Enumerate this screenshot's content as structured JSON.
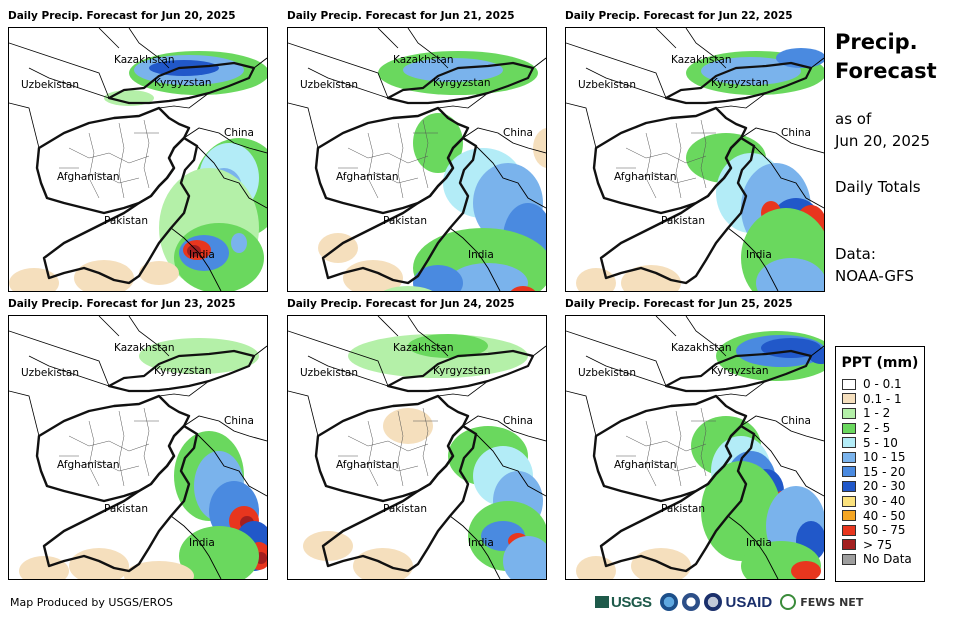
{
  "panels": [
    {
      "title": "Daily Precip. Forecast for Jun 20, 2025"
    },
    {
      "title": "Daily Precip. Forecast for Jun 21, 2025"
    },
    {
      "title": "Daily Precip. Forecast for Jun 22, 2025"
    },
    {
      "title": "Daily Precip. Forecast for Jun 23, 2025"
    },
    {
      "title": "Daily Precip. Forecast for Jun 24, 2025"
    },
    {
      "title": "Daily Precip. Forecast for Jun 25, 2025"
    }
  ],
  "country_labels": {
    "kazakhstan": "Kazakhstan",
    "uzbekistan": "Uzbekistan",
    "kyrgyzstan": "Kyrgyzstan",
    "china": "China",
    "afghanistan": "Afghanistan",
    "pakistan": "Pakistan",
    "india": "India"
  },
  "side": {
    "title_line1": "Precip.",
    "title_line2": "Forecast",
    "as_of_label": "as of",
    "date": "Jun 20, 2025",
    "totals": "Daily Totals",
    "data_label": "Data:",
    "data_source": "NOAA-GFS"
  },
  "legend": {
    "title": "PPT (mm)",
    "items": [
      {
        "label": "0 - 0.1",
        "color": "#ffffff"
      },
      {
        "label": "0.1 - 1",
        "color": "#f5dfbd"
      },
      {
        "label": "1 - 2",
        "color": "#b4f0a8"
      },
      {
        "label": "2 - 5",
        "color": "#6ad85e"
      },
      {
        "label": "5 - 10",
        "color": "#b3ecf7"
      },
      {
        "label": "10 - 15",
        "color": "#7ab3ec"
      },
      {
        "label": "15 - 20",
        "color": "#4a8ae0"
      },
      {
        "label": "20 - 30",
        "color": "#2158c9"
      },
      {
        "label": "30 - 40",
        "color": "#fbe27d"
      },
      {
        "label": "40 - 50",
        "color": "#f5a623"
      },
      {
        "label": "50 - 75",
        "color": "#e8361e"
      },
      {
        "label": "> 75",
        "color": "#a31f1f"
      },
      {
        "label": "No Data",
        "color": "#9e9e9e"
      }
    ]
  },
  "footer": {
    "credit": "Map Produced by USGS/EROS",
    "logo_usgs": "USGS",
    "logo_usaid": "USAID",
    "logo_fews": "FEWS NET"
  }
}
